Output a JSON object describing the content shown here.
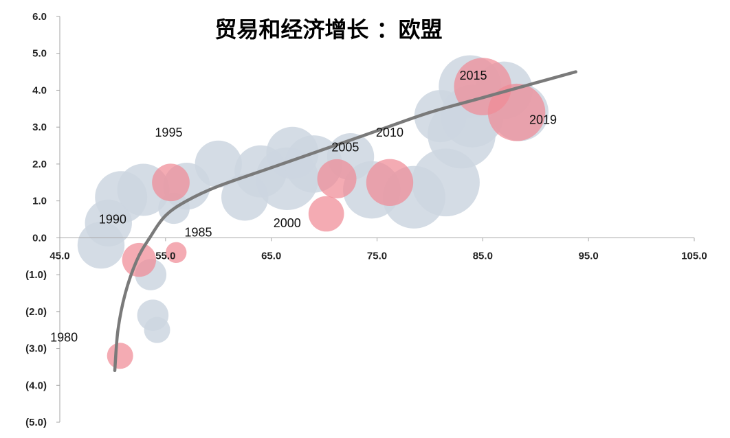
{
  "chart_data": {
    "type": "scatter",
    "title": "贸易和经济增长 ：欧盟",
    "xlim": [
      45.0,
      105.0
    ],
    "ylim": [
      -5.0,
      6.0
    ],
    "x_ticks": [
      {
        "value": 45.0,
        "label": "45.0"
      },
      {
        "value": 55.0,
        "label": "55.0"
      },
      {
        "value": 65.0,
        "label": "65.0"
      },
      {
        "value": 75.0,
        "label": "75.0"
      },
      {
        "value": 85.0,
        "label": "85.0"
      },
      {
        "value": 95.0,
        "label": "95.0"
      },
      {
        "value": 105.0,
        "label": "105.0"
      }
    ],
    "y_ticks": [
      {
        "value": 6.0,
        "label": "6.0"
      },
      {
        "value": 5.0,
        "label": "5.0"
      },
      {
        "value": 4.0,
        "label": "4.0"
      },
      {
        "value": 3.0,
        "label": "3.0"
      },
      {
        "value": 2.0,
        "label": "2.0"
      },
      {
        "value": 1.0,
        "label": "1.0"
      },
      {
        "value": 0.0,
        "label": "0.0"
      },
      {
        "value": -1.0,
        "label": "(1.0)"
      },
      {
        "value": -2.0,
        "label": "(2.0)"
      },
      {
        "value": -3.0,
        "label": "(3.0)"
      },
      {
        "value": -4.0,
        "label": "(4.0)"
      },
      {
        "value": -5.0,
        "label": "(5.0)"
      }
    ],
    "colors": {
      "background_bubble": "#cdd6e0",
      "highlight_bubble": "#f08a96",
      "trend": "#7a7a7a",
      "axis": "#a6a6a6"
    },
    "background_points": [
      {
        "x": 50.8,
        "y": 1.1,
        "size": 1.0
      },
      {
        "x": 49.6,
        "y": 0.4,
        "size": 0.9
      },
      {
        "x": 48.9,
        "y": -0.2,
        "size": 0.9
      },
      {
        "x": 52.9,
        "y": 1.3,
        "size": 1.0
      },
      {
        "x": 53.6,
        "y": -1.0,
        "size": 0.6
      },
      {
        "x": 53.8,
        "y": -2.1,
        "size": 0.6
      },
      {
        "x": 54.2,
        "y": -2.5,
        "size": 0.5
      },
      {
        "x": 55.8,
        "y": 0.8,
        "size": 0.6
      },
      {
        "x": 57.0,
        "y": 1.4,
        "size": 0.9
      },
      {
        "x": 60.0,
        "y": 2.0,
        "size": 0.9
      },
      {
        "x": 62.5,
        "y": 1.1,
        "size": 0.9
      },
      {
        "x": 64.0,
        "y": 1.8,
        "size": 1.0
      },
      {
        "x": 66.5,
        "y": 1.6,
        "size": 1.2
      },
      {
        "x": 67.0,
        "y": 2.3,
        "size": 1.0
      },
      {
        "x": 69.0,
        "y": 2.0,
        "size": 1.1
      },
      {
        "x": 74.5,
        "y": 1.3,
        "size": 1.1
      },
      {
        "x": 78.5,
        "y": 1.1,
        "size": 1.2
      },
      {
        "x": 81.5,
        "y": 1.5,
        "size": 1.3
      },
      {
        "x": 83.0,
        "y": 2.8,
        "size": 1.3
      },
      {
        "x": 83.8,
        "y": 4.1,
        "size": 1.2
      },
      {
        "x": 87.0,
        "y": 4.0,
        "size": 1.1
      },
      {
        "x": 88.5,
        "y": 3.4,
        "size": 1.1
      },
      {
        "x": 72.5,
        "y": 2.2,
        "size": 0.9
      },
      {
        "x": 81.0,
        "y": 3.3,
        "size": 1.0
      },
      {
        "x": 84.0,
        "y": 3.3,
        "size": 1.2
      }
    ],
    "highlight_points": [
      {
        "year": "1980",
        "x": 50.7,
        "y": -3.2,
        "size": 0.5,
        "label_dx": -5.3,
        "label_dy": 0.5
      },
      {
        "year": "1985",
        "x": 56.0,
        "y": -0.4,
        "size": 0.4,
        "label_dx": 2.1,
        "label_dy": 0.55
      },
      {
        "year": "1990",
        "x": 52.5,
        "y": -0.6,
        "size": 0.65,
        "label_dx": -2.5,
        "label_dy": 1.1
      },
      {
        "year": "1995",
        "x": 55.5,
        "y": 1.5,
        "size": 0.72,
        "label_dx": -0.2,
        "label_dy": 1.35
      },
      {
        "year": "2000",
        "x": 70.2,
        "y": 0.65,
        "size": 0.68,
        "label_dx": -3.7,
        "label_dy": -0.25
      },
      {
        "year": "2005",
        "x": 71.2,
        "y": 1.6,
        "size": 0.75,
        "label_dx": 0.8,
        "label_dy": 0.85
      },
      {
        "year": "2010",
        "x": 76.2,
        "y": 1.5,
        "size": 0.9,
        "label_dx": 0.0,
        "label_dy": 1.35
      },
      {
        "year": "2015",
        "x": 85.0,
        "y": 4.1,
        "size": 1.1,
        "label_dx": -0.9,
        "label_dy": 0.3
      },
      {
        "year": "2019",
        "x": 88.2,
        "y": 3.4,
        "size": 1.1,
        "label_dx": 2.5,
        "label_dy": -0.2
      }
    ],
    "trend_line": [
      {
        "x": 50.2,
        "y": -3.6
      },
      {
        "x": 50.5,
        "y": -2.5
      },
      {
        "x": 51.2,
        "y": -1.5
      },
      {
        "x": 52.3,
        "y": -0.6
      },
      {
        "x": 53.5,
        "y": 0.0
      },
      {
        "x": 55.0,
        "y": 0.6
      },
      {
        "x": 57.0,
        "y": 1.0
      },
      {
        "x": 60.0,
        "y": 1.4
      },
      {
        "x": 65.0,
        "y": 1.9
      },
      {
        "x": 70.0,
        "y": 2.4
      },
      {
        "x": 75.0,
        "y": 2.9
      },
      {
        "x": 80.0,
        "y": 3.4
      },
      {
        "x": 85.0,
        "y": 3.8
      },
      {
        "x": 90.0,
        "y": 4.2
      },
      {
        "x": 93.8,
        "y": 4.5
      }
    ]
  }
}
